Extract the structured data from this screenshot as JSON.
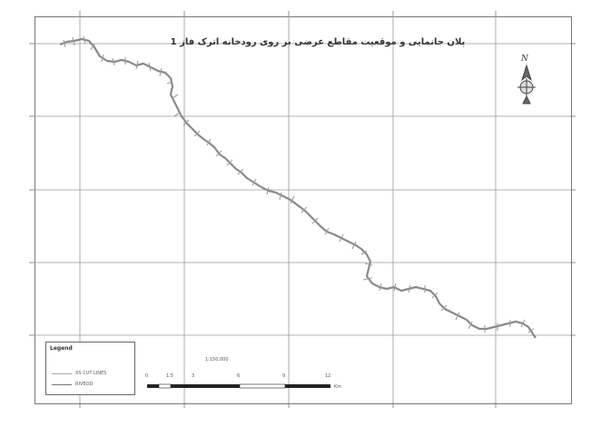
{
  "map": {
    "title": "پلان جانمایی و موقعیت مقاطع عرضی بر روی رودخانه اترک فاز 1",
    "north_label": "N",
    "scale_ratio": "1:150,000",
    "scale_labels": [
      "0",
      "1.5",
      "3",
      "6",
      "9",
      "12"
    ],
    "scale_unit": "Km",
    "legend": {
      "title": "Legend",
      "items": [
        {
          "label": "XS CUT LINES"
        },
        {
          "label": "RIVEOD"
        }
      ]
    }
  },
  "colors": {
    "river": "#888888",
    "grid": "#999999",
    "frame": "#777777"
  }
}
